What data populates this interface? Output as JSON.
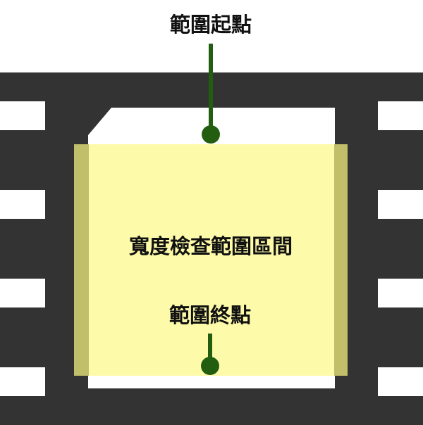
{
  "labels": {
    "range_start": "範圍起點",
    "range_end": "範圍終點",
    "check_interval": "寬度檢查範圍區間"
  },
  "colors": {
    "background": "#ffffff",
    "chip_body": "#333333",
    "pads": "#ffffff",
    "die": "#ffffff",
    "highlight_fill": "#fdfaa9",
    "highlight_edge": "#c2bf6a",
    "marker": "#235e10",
    "text": "#111111"
  }
}
